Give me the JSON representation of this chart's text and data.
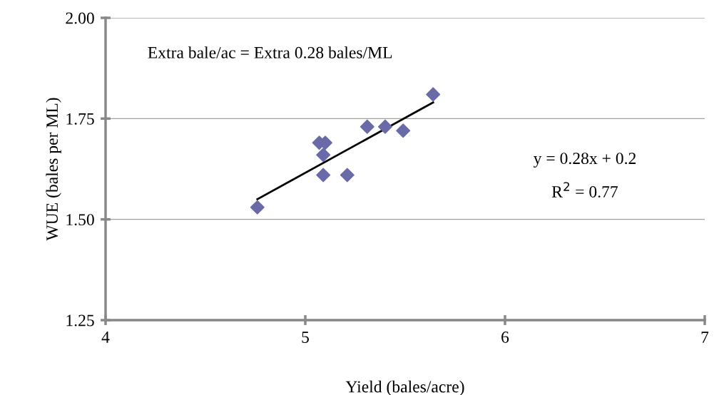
{
  "chart_data": {
    "type": "scatter",
    "xlabel": "Yield (bales/acre)",
    "ylabel": "WUE (bales per ML)",
    "xlim": [
      4,
      7
    ],
    "xticks": [
      4,
      5,
      6,
      7
    ],
    "ylim": [
      1.25,
      2.0
    ],
    "yticks": [
      {
        "value": 1.25,
        "label": "1.25"
      },
      {
        "value": 1.5,
        "label": "1.50"
      },
      {
        "value": 1.75,
        "label": "1.75"
      },
      {
        "value": 2.0,
        "label": "2.00"
      }
    ],
    "grid": "y",
    "legend": false,
    "series": [
      {
        "marker": "diamond",
        "color": "#6a6aa8",
        "x": [
          4.76,
          5.07,
          5.1,
          5.09,
          5.09,
          5.21,
          5.31,
          5.4,
          5.49,
          5.64
        ],
        "values": [
          1.53,
          1.69,
          1.69,
          1.66,
          1.61,
          1.61,
          1.73,
          1.73,
          1.72,
          1.81
        ]
      },
      {
        "type": "line",
        "marker": "none",
        "color": "#000000",
        "x": [
          4.76,
          5.64
        ],
        "values": [
          1.55,
          1.79
        ]
      }
    ],
    "annotations": [
      "Extra bale/ac = Extra 0.28 bales/ML",
      "y = 0.28x + 0.2",
      "R$^{2}$ = 0.77"
    ]
  }
}
